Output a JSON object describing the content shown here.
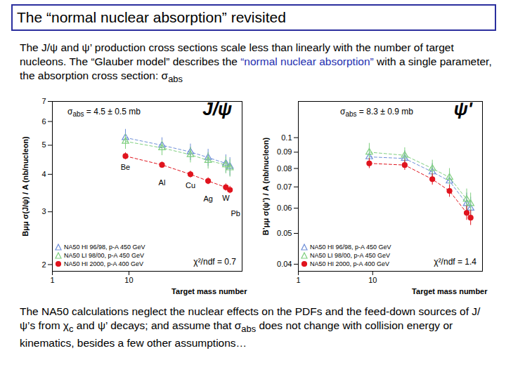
{
  "header": {
    "title": "The “normal nuclear absorption” revisited"
  },
  "intro": [
    {
      "text": "The J/ψ and ψ’ production cross sections scale less than linearly with the number of target nucleons. The “Glauber model” describes the "
    },
    {
      "text": "“normal nuclear absorption”",
      "color": "#1f2fb0"
    },
    {
      "text": " with a single parameter, the absorption cross section: σ"
    },
    {
      "text": "abs",
      "sub": true
    }
  ],
  "chart_data": [
    {
      "type": "scatter",
      "title": "J/ψ",
      "x": [
        9,
        27,
        63.5,
        108,
        184,
        208
      ],
      "point_labels": [
        "Be",
        "Al",
        "Cu",
        "Ag",
        "W",
        "Pb"
      ],
      "xlabel": "Target mass number",
      "ylabel": "Bμμ σ(J/ψ) / A (nb/nucleon)",
      "log": true,
      "xlim": [
        1,
        300
      ],
      "xticks": [
        1,
        10
      ],
      "ylim": [
        1.9,
        7
      ],
      "yticks": [
        2,
        3,
        4,
        5,
        6,
        7
      ],
      "legend": "bottom-left",
      "series": [
        {
          "name": "NA50 HI 96/98, p-A 450 GeV",
          "color": "#6f8fd8",
          "marker": "triangle-open",
          "line_style": "dashed",
          "values": [
            5.3,
            5.0,
            4.75,
            4.55,
            4.35,
            4.25
          ],
          "errors": [
            0.35,
            0.3,
            0.3,
            0.3,
            0.3,
            0.3
          ]
        },
        {
          "name": "NA50 LI 98/00, p-A 450 GeV",
          "color": "#7fcf7f",
          "marker": "triangle-open",
          "line_style": "dashed",
          "values": [
            5.15,
            4.9,
            4.65,
            4.45,
            4.3,
            4.2
          ],
          "errors": [
            0.3,
            0.28,
            0.28,
            0.28,
            0.28,
            0.28
          ]
        },
        {
          "name": "NA50 HI 2000, p-A 400 GeV",
          "color": "#e0141e",
          "marker": "circle",
          "line_style": "dashed",
          "values": [
            4.6,
            4.3,
            4.0,
            3.8,
            3.62,
            3.55
          ],
          "errors": [
            0.12,
            0.1,
            0.1,
            0.1,
            0.1,
            0.1
          ]
        }
      ],
      "annotations": [
        {
          "text": "σ",
          "sub": "abs",
          "after": " = 4.5 ± 0.5 mb"
        },
        {
          "text": "χ²/ndf = 0.7"
        }
      ]
    },
    {
      "type": "scatter",
      "title": "ψ'",
      "x": [
        9,
        27,
        63.5,
        108,
        184,
        208
      ],
      "xlabel": "Target mass number",
      "ylabel": "B’μμ σ(ψ’) / A (nb/nucleon)",
      "log": true,
      "xlim": [
        1,
        300
      ],
      "xticks": [
        1,
        10
      ],
      "ylim": [
        0.038,
        0.13
      ],
      "yticks": [
        0.04,
        0.05,
        0.06,
        0.07,
        0.08,
        0.09,
        0.1
      ],
      "legend": "bottom-left",
      "series": [
        {
          "name": "NA50 HI 96/98, p-A 450 GeV",
          "color": "#6f8fd8",
          "marker": "triangle-open",
          "line_style": "dashed",
          "values": [
            0.087,
            0.086,
            0.078,
            0.073,
            0.062,
            0.06
          ],
          "errors": [
            0.006,
            0.005,
            0.005,
            0.005,
            0.005,
            0.005
          ]
        },
        {
          "name": "NA50 LI 98/00, p-A 450 GeV",
          "color": "#7fcf7f",
          "marker": "triangle-open",
          "line_style": "dashed",
          "values": [
            0.09,
            0.088,
            0.08,
            0.075,
            0.064,
            0.062
          ],
          "errors": [
            0.006,
            0.005,
            0.005,
            0.005,
            0.005,
            0.005
          ]
        },
        {
          "name": "NA50 HI 2000, p-A 400 GeV",
          "color": "#e0141e",
          "marker": "circle",
          "line_style": "dashed",
          "values": [
            0.083,
            0.082,
            0.074,
            0.068,
            0.058,
            0.056
          ],
          "errors": [
            0.003,
            0.003,
            0.003,
            0.003,
            0.003,
            0.003
          ]
        }
      ],
      "annotations": [
        {
          "text": "σ",
          "sub": "abs",
          "after": " = 8.3 ± 0.9 mb"
        },
        {
          "text": "χ²/ndf = 1.4"
        }
      ]
    }
  ],
  "footer": [
    {
      "text": "The NA50 calculations neglect the nuclear effects on the PDFs and the feed-down sources of J/ψ’s from χ"
    },
    {
      "text": "c",
      "sub": true
    },
    {
      "text": " and ψ’ decays; and assume that σ"
    },
    {
      "text": "abs",
      "sub": true
    },
    {
      "text": " does not change with collision energy or kinematics, besides a few other assumptions…"
    }
  ]
}
